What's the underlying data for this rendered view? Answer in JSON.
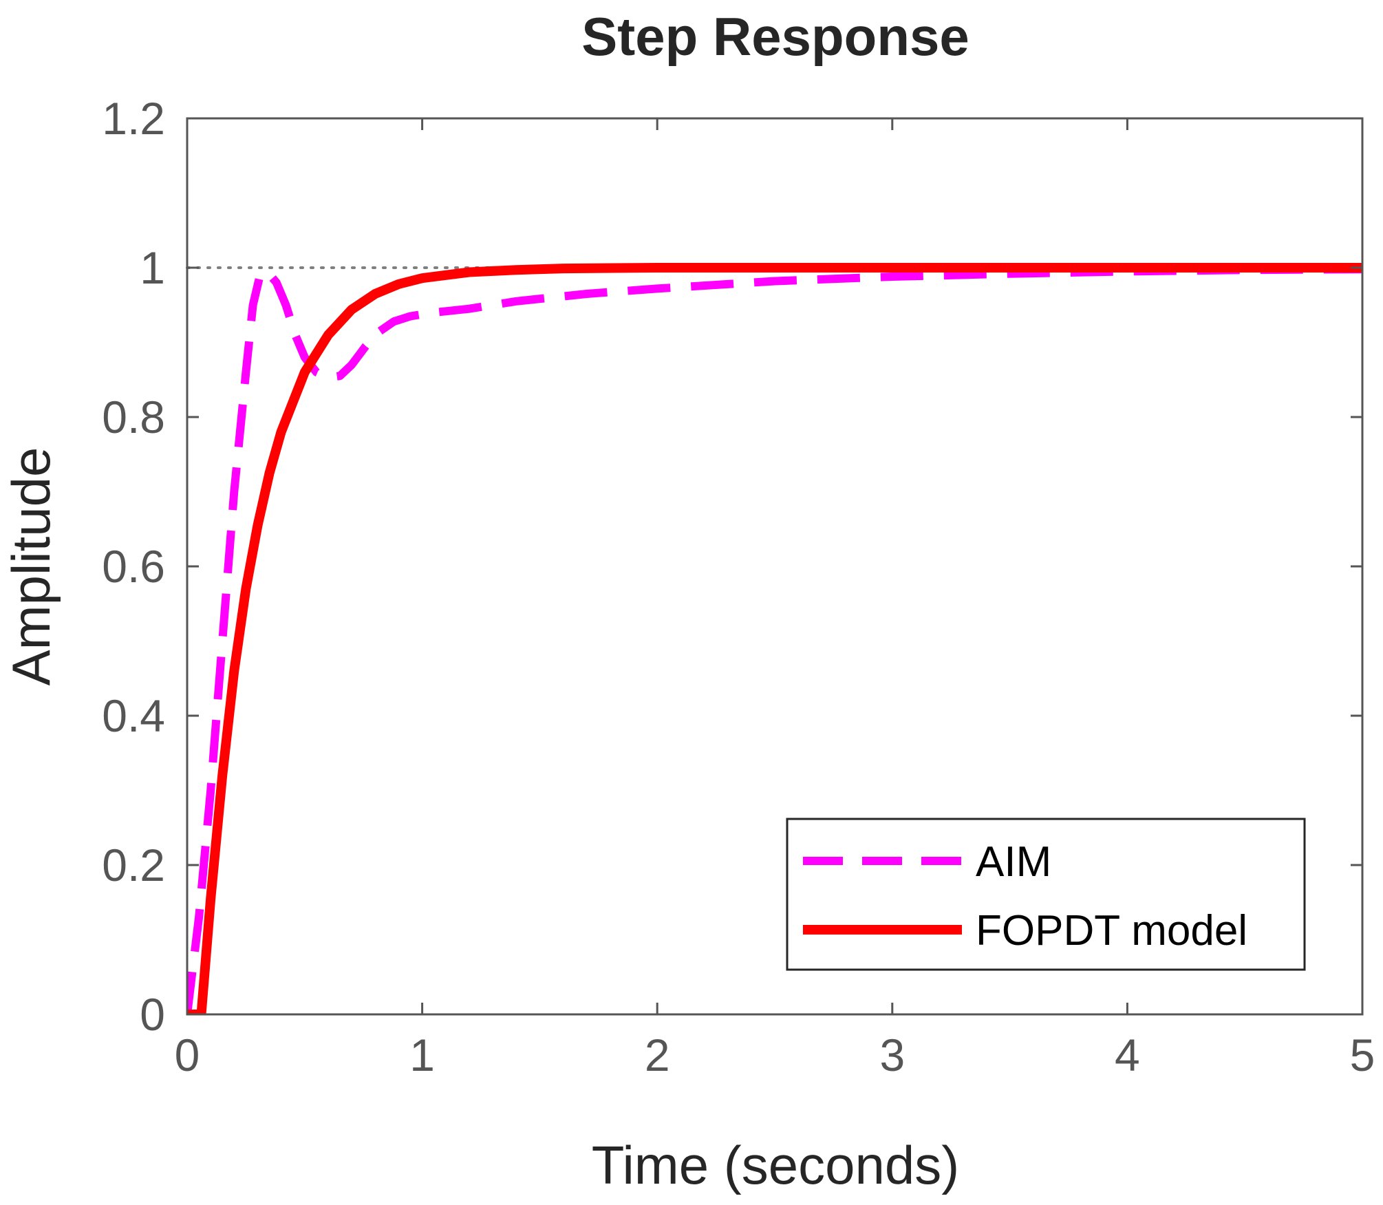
{
  "chart_data": {
    "type": "line",
    "title": "Step Response",
    "xlabel": "Time (seconds)",
    "ylabel": "Amplitude",
    "xlim": [
      0,
      5
    ],
    "ylim": [
      0,
      1.2
    ],
    "xticks": [
      "0",
      "1",
      "2",
      "3",
      "4",
      "5"
    ],
    "yticks": [
      "0",
      "0.2",
      "0.4",
      "0.6",
      "0.8",
      "1",
      "1.2"
    ],
    "xtick_values": [
      0,
      1,
      2,
      3,
      4,
      5
    ],
    "ytick_values": [
      0,
      0.2,
      0.4,
      0.6,
      0.8,
      1.0,
      1.2
    ],
    "grid": false,
    "reference_line": {
      "y": 1.0,
      "style": "dotted",
      "color": "#7f7f7f"
    },
    "legend_position": "bottom-right",
    "series": [
      {
        "name": "AIM",
        "color": "#ff00ff",
        "style": "dashed",
        "x": [
          0,
          0.05,
          0.1,
          0.15,
          0.2,
          0.25,
          0.28,
          0.31,
          0.34,
          0.38,
          0.42,
          0.46,
          0.5,
          0.55,
          0.6,
          0.65,
          0.7,
          0.76,
          0.82,
          0.88,
          0.95,
          1.05,
          1.2,
          1.4,
          1.7,
          2.0,
          2.5,
          3.0,
          3.5,
          4.0,
          4.5,
          5.0
        ],
        "y": [
          0,
          0.13,
          0.3,
          0.5,
          0.7,
          0.86,
          0.95,
          0.99,
          0.995,
          0.98,
          0.95,
          0.91,
          0.88,
          0.86,
          0.853,
          0.855,
          0.87,
          0.895,
          0.915,
          0.928,
          0.935,
          0.94,
          0.945,
          0.955,
          0.965,
          0.972,
          0.982,
          0.988,
          0.992,
          0.995,
          0.997,
          0.998
        ]
      },
      {
        "name": "FOPDT model",
        "color": "#ff0000",
        "style": "solid",
        "x": [
          0,
          0.06,
          0.1,
          0.15,
          0.2,
          0.25,
          0.3,
          0.35,
          0.4,
          0.5,
          0.6,
          0.7,
          0.8,
          0.9,
          1.0,
          1.2,
          1.4,
          1.6,
          2.0,
          2.5,
          3.0,
          3.5,
          4.0,
          4.5,
          5.0
        ],
        "y": [
          0,
          0,
          0.155,
          0.32,
          0.46,
          0.57,
          0.655,
          0.725,
          0.78,
          0.86,
          0.91,
          0.944,
          0.965,
          0.978,
          0.986,
          0.994,
          0.997,
          0.999,
          1.0,
          1.0,
          1.0,
          1.0,
          1.0,
          1.0,
          1.0
        ]
      }
    ]
  }
}
